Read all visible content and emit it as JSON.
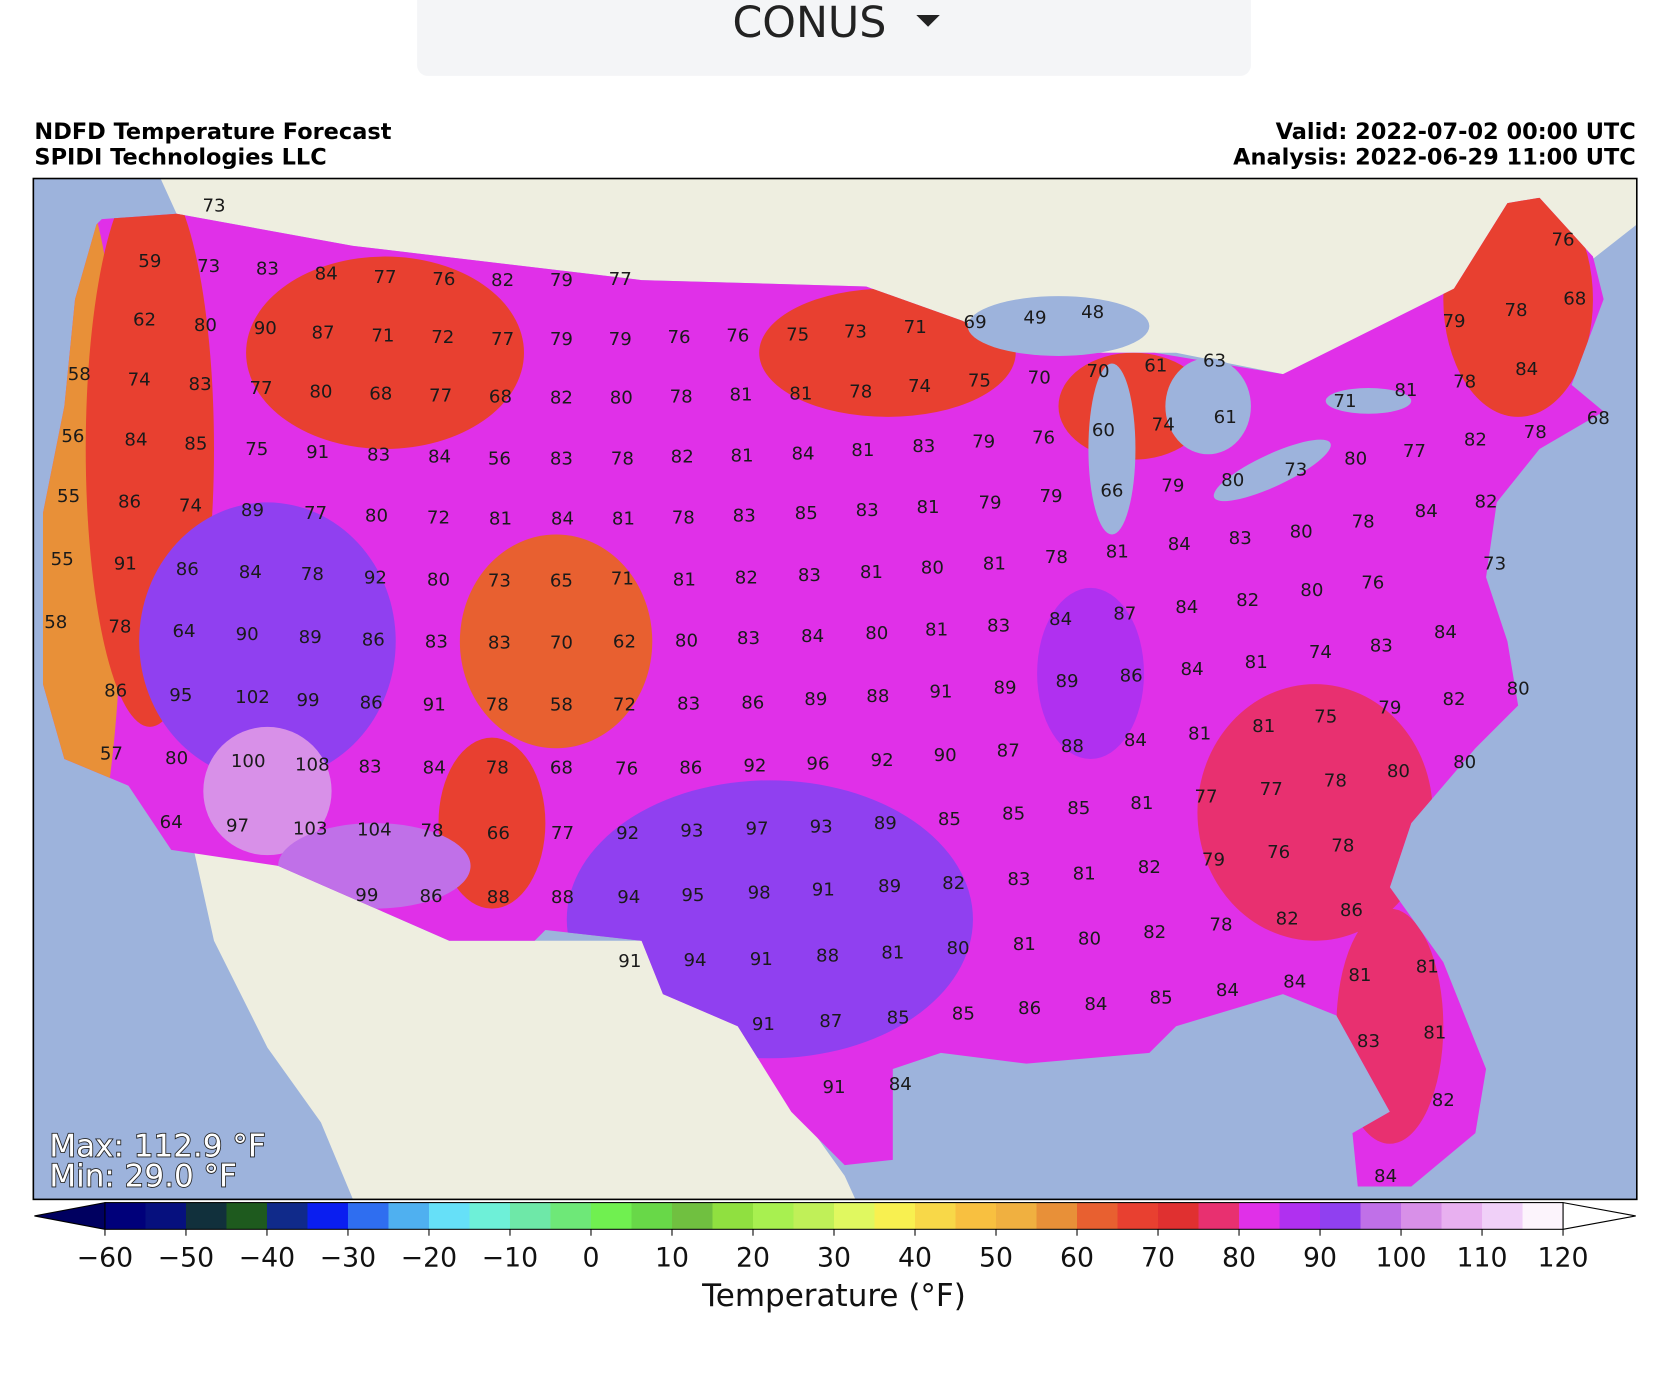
{
  "dropdown": "CONUS",
  "header": {
    "title": "NDFD Temperature Forecast",
    "subtitle": "SPIDI Technologies LLC",
    "valid": "Valid: 2022-07-02 00:00 UTC",
    "analysis": "Analysis: 2022-06-29 11:00 UTC"
  },
  "map": {
    "stations": [
      73,
      59,
      73,
      83,
      84,
      77,
      76,
      82,
      79,
      77,
      62,
      80,
      90,
      87,
      71,
      72,
      77,
      79,
      79,
      76,
      76,
      75,
      73,
      71,
      69,
      49,
      48,
      79,
      78,
      76,
      68,
      58,
      74,
      83,
      77,
      80,
      68,
      77,
      68,
      82,
      80,
      78,
      81,
      81,
      78,
      74,
      75,
      70,
      70,
      61,
      63,
      81,
      78,
      84,
      71,
      68,
      56,
      84,
      85,
      75,
      91,
      83,
      84,
      56,
      83,
      78,
      82,
      81,
      84,
      81,
      83,
      79,
      76,
      60,
      74,
      61,
      82,
      78,
      80,
      77,
      73,
      55,
      86,
      74,
      89,
      77,
      80,
      72,
      81,
      84,
      81,
      78,
      83,
      85,
      83,
      81,
      79,
      79,
      66,
      79,
      80,
      84,
      78,
      82,
      80,
      83,
      84,
      81,
      78,
      55,
      91,
      86,
      84,
      78,
      92,
      80,
      73,
      65,
      71,
      81,
      82,
      83,
      81,
      80,
      81,
      73,
      76,
      80,
      82,
      84,
      87,
      84,
      58,
      78,
      64,
      90,
      89,
      86,
      83,
      83,
      70,
      62,
      80,
      83,
      84,
      80,
      81,
      83,
      83,
      84,
      74,
      81,
      84,
      86,
      89,
      86,
      95,
      102,
      99,
      86,
      91,
      78,
      58,
      72,
      83,
      86,
      89,
      88,
      91,
      89,
      80,
      82,
      79,
      75,
      81,
      81,
      84,
      88,
      57,
      80,
      100,
      108,
      83,
      84,
      78,
      68,
      76,
      86,
      92,
      96,
      92,
      90,
      87,
      80,
      80,
      78,
      77,
      77,
      81,
      85,
      64,
      97,
      103,
      104,
      78,
      66,
      77,
      92,
      93,
      97,
      93,
      89,
      85,
      85,
      78,
      76,
      79,
      82,
      81,
      99,
      86,
      88,
      88,
      94,
      95,
      98,
      91,
      89,
      82,
      83,
      86,
      82,
      78,
      82,
      80,
      81,
      80,
      81,
      88,
      91,
      94,
      91,
      81,
      81,
      84,
      84,
      85,
      84,
      86,
      85,
      85,
      87,
      91,
      83,
      81,
      91,
      84,
      82,
      84
    ],
    "stats": [
      "Max: 112.9 °F",
      "Min: 29.0 °F"
    ]
  },
  "colorbar": {
    "label": "Temperature (°F)",
    "lim": [
      -60,
      120
    ],
    "step": 5,
    "colors": [
      "#00007a",
      "#06107e",
      "#11303c",
      "#1e5a1e",
      "#102a8a",
      "#0a1ef0",
      "#2f6ef0",
      "#4fb0f0",
      "#66e0f8",
      "#6ef0d8",
      "#6ee8a8",
      "#6ee878",
      "#70f050",
      "#68d848",
      "#70c040",
      "#90e040",
      "#a8f050",
      "#c0f058",
      "#e0f860",
      "#f8f050",
      "#f8d848",
      "#f8c040",
      "#f0b040",
      "#e89038",
      "#e86030",
      "#e84030",
      "#e03030",
      "#e83070",
      "#e030e8",
      "#b030f0",
      "#9040f0",
      "#c070e8",
      "#d890e8",
      "#e8b0f0",
      "#f0d0f8",
      "#fcf4fc"
    ],
    "under": "#000060",
    "over": "#ffffff",
    "ticks": [
      {
        "value": -60,
        "label": "−60"
      },
      {
        "value": -50,
        "label": "−50"
      },
      {
        "value": -40,
        "label": "−40"
      },
      {
        "value": -30,
        "label": "−30"
      },
      {
        "value": -20,
        "label": "−20"
      },
      {
        "value": -10,
        "label": "−10"
      },
      0,
      10,
      20,
      30,
      40,
      50,
      60,
      70,
      80,
      90,
      100,
      110,
      120
    ]
  }
}
